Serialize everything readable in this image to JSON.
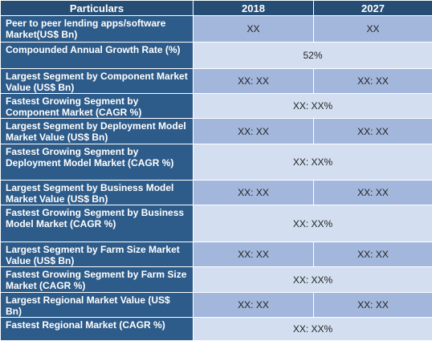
{
  "header": {
    "particulars": "Particulars",
    "y2018": "2018",
    "y2027": "2027"
  },
  "rows": [
    {
      "label": "Peer to peer lending apps/software Market(US$ Bn)",
      "v2018": "XX",
      "v2027": "XX"
    },
    {
      "label": "Compounded Annual Growth Rate (%)",
      "merged": "52%"
    },
    {
      "label": "Largest Segment by Component Market Value (US$ Bn)",
      "v2018": "XX: XX",
      "v2027": "XX: XX"
    },
    {
      "label": "Fastest Growing Segment by Component Market (CAGR %)",
      "merged": "XX: XX%"
    },
    {
      "label": "Largest Segment by Deployment Model  Market Value (US$ Bn)",
      "v2018": "XX: XX",
      "v2027": "XX: XX"
    },
    {
      "label": "Fastest Growing Segment by Deployment Model Market (CAGR %)",
      "merged": "XX: XX%"
    },
    {
      "label": "Largest Segment by Business Model  Market Value (US$ Bn)",
      "v2018": "XX: XX",
      "v2027": "XX: XX"
    },
    {
      "label": "Fastest Growing Segment by Business Model Market (CAGR %)",
      "merged": "XX: XX%"
    },
    {
      "label": "Largest Segment by Farm Size Market Value (US$ Bn)",
      "v2018": "XX: XX",
      "v2027": "XX: XX"
    },
    {
      "label": "Fastest Growing Segment by Farm Size Market (CAGR %)",
      "merged": "XX: XX%"
    },
    {
      "label": "Largest Regional Market Value (US$ Bn)",
      "v2018": "XX: XX",
      "v2027": "XX: XX"
    },
    {
      "label": "Fastest Regional Market (CAGR %)",
      "merged": "XX: XX%"
    }
  ]
}
